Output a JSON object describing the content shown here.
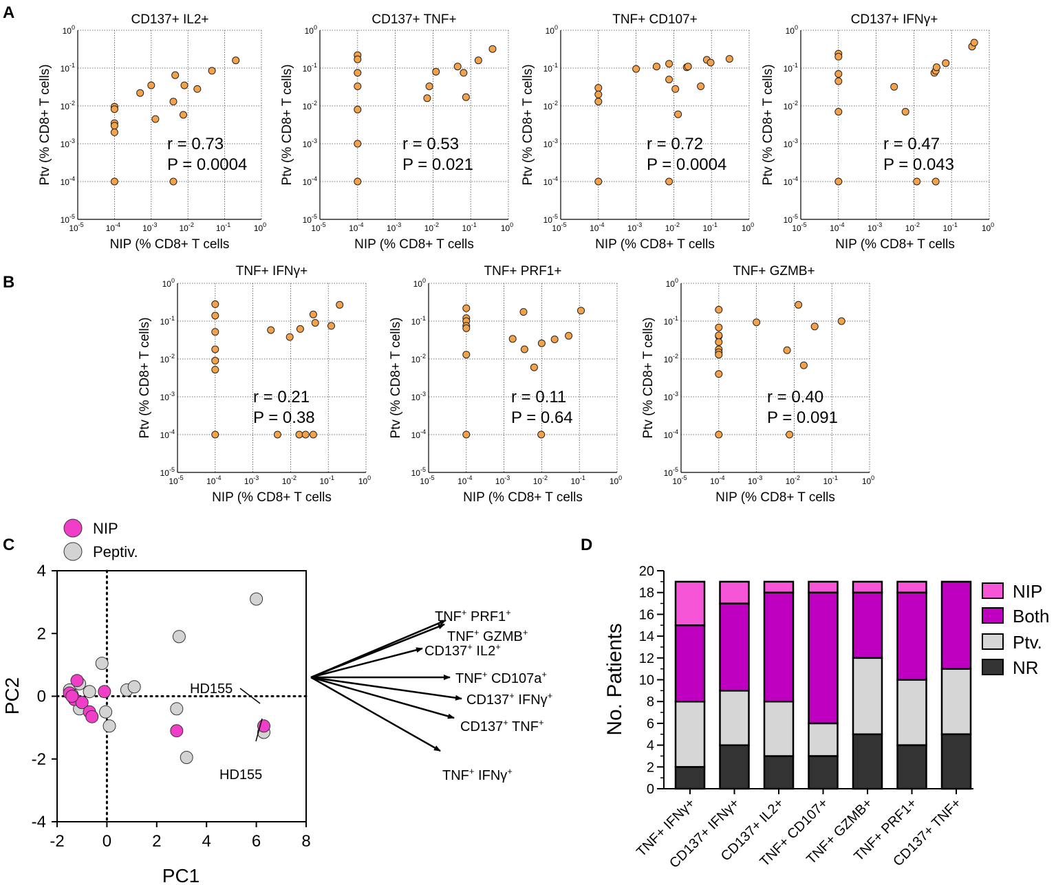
{
  "panels": {
    "A": "A",
    "B": "B",
    "C": "C",
    "D": "D"
  },
  "colors": {
    "orange_point": "#F4A24A",
    "nip_magenta": "#F03EC8",
    "peptiv_grey": "#D3D3D3",
    "both_purple": "#C000C0",
    "nip_pink": "#F555D6",
    "nr_dark": "#333333",
    "ptv_grey": "#D6D6D6"
  },
  "chart_data": [
    {
      "id": "A1",
      "type": "scatter",
      "title": "CD137+ IL2+",
      "xlabel": "NIP (% CD8+ T cells",
      "ylabel": "Ptv (% CD8+ T cells)",
      "xscale": "log",
      "yscale": "log",
      "xlim": [
        1e-05,
        1
      ],
      "ylim": [
        1e-05,
        1
      ],
      "r_text": "r = 0.73",
      "p_text": "P = 0.0004",
      "x": [
        0.0001,
        0.0001,
        0.0001,
        0.0001,
        0.0001,
        0.0001,
        0.0005,
        0.001,
        0.0013,
        0.004,
        0.0045,
        0.0075,
        0.008,
        0.018,
        0.045,
        0.2,
        0.004
      ],
      "y": [
        0.0095,
        0.0082,
        0.0035,
        0.003,
        0.002,
        0.0001,
        0.022,
        0.035,
        0.0045,
        0.013,
        0.065,
        0.0058,
        0.035,
        0.028,
        0.085,
        0.16,
        0.0001
      ]
    },
    {
      "id": "A2",
      "type": "scatter",
      "title": "CD137+ TNF+",
      "xlabel": "NIP (% CD8+ T cells",
      "ylabel": "Ptv (% CD8+ T cells)",
      "xscale": "log",
      "yscale": "log",
      "xlim": [
        1e-05,
        1
      ],
      "ylim": [
        1e-05,
        1
      ],
      "r_text": "r = 0.53",
      "p_text": "P = 0.021",
      "x": [
        0.0001,
        0.0001,
        0.0001,
        0.0001,
        0.0001,
        0.0001,
        0.0001,
        0.007,
        0.008,
        0.012,
        0.045,
        0.065,
        0.075,
        0.16,
        0.38
      ],
      "y": [
        0.22,
        0.17,
        0.075,
        0.033,
        0.008,
        0.001,
        0.0001,
        0.016,
        0.033,
        0.08,
        0.11,
        0.075,
        0.017,
        0.16,
        0.32
      ]
    },
    {
      "id": "A3",
      "type": "scatter",
      "title": "TNF+ CD107+",
      "xlabel": "NIP (% CD8+ T cells",
      "ylabel": "Ptv (% CD8+ T cells)",
      "xscale": "log",
      "yscale": "log",
      "xlim": [
        1e-05,
        1
      ],
      "ylim": [
        1e-05,
        1
      ],
      "r_text": "r = 0.72",
      "p_text": "P = 0.0004",
      "x": [
        0.0001,
        0.0001,
        0.0001,
        0.0001,
        0.001,
        0.0035,
        0.0075,
        0.0075,
        0.011,
        0.013,
        0.022,
        0.024,
        0.052,
        0.075,
        0.095,
        0.3,
        0.0075
      ],
      "y": [
        0.03,
        0.02,
        0.013,
        0.0001,
        0.095,
        0.11,
        0.13,
        0.05,
        0.028,
        0.006,
        0.105,
        0.11,
        0.033,
        0.165,
        0.14,
        0.175,
        0.0001
      ]
    },
    {
      "id": "A4",
      "type": "scatter",
      "title": "CD137+ IFNγ+",
      "xlabel": "NIP (% CD8+ T cells",
      "ylabel": "Ptv (% CD8+ T cells)",
      "xscale": "log",
      "yscale": "log",
      "xlim": [
        1e-05,
        1
      ],
      "ylim": [
        1e-05,
        1
      ],
      "r_text": "r = 0.47",
      "p_text": "P = 0.043",
      "x": [
        0.0001,
        0.0001,
        0.0001,
        0.0001,
        0.0001,
        0.0001,
        0.003,
        0.006,
        0.012,
        0.035,
        0.038,
        0.04,
        0.07,
        0.35,
        0.4,
        0.038
      ],
      "y": [
        0.24,
        0.2,
        0.07,
        0.045,
        0.007,
        0.0001,
        0.032,
        0.007,
        0.0001,
        0.075,
        0.085,
        0.105,
        0.135,
        0.37,
        0.47,
        0.0001
      ]
    },
    {
      "id": "B1",
      "type": "scatter",
      "title": "TNF+ IFNγ+",
      "xlabel": "NIP (% CD8+ T cells",
      "ylabel": "Ptv (% CD8+ T cells)",
      "xscale": "log",
      "yscale": "log",
      "xlim": [
        1e-05,
        1
      ],
      "ylim": [
        1e-05,
        1
      ],
      "r_text": "r = 0.21",
      "p_text": "P = 0.38",
      "x": [
        0.0001,
        0.0001,
        0.0001,
        0.0001,
        0.0001,
        0.0001,
        0.0001,
        0.003,
        0.0045,
        0.0095,
        0.017,
        0.018,
        0.025,
        0.04,
        0.045,
        0.04,
        0.12,
        0.2
      ],
      "y": [
        0.28,
        0.14,
        0.052,
        0.018,
        0.009,
        0.0052,
        0.0001,
        0.058,
        0.0001,
        0.038,
        0.0001,
        0.062,
        0.0001,
        0.0001,
        0.09,
        0.15,
        0.075,
        0.27
      ]
    },
    {
      "id": "B2",
      "type": "scatter",
      "title": "TNF+ PRF1+",
      "xlabel": "NIP (% CD8+ T cells",
      "ylabel": "Ptv (% CD8+ T cells)",
      "xscale": "log",
      "yscale": "log",
      "xlim": [
        1e-05,
        1
      ],
      "ylim": [
        1e-05,
        1
      ],
      "r_text": "r = 0.11",
      "p_text": "P = 0.64",
      "x": [
        0.0001,
        0.0001,
        0.0001,
        0.0001,
        0.0001,
        0.0001,
        0.0001,
        0.0017,
        0.0033,
        0.0035,
        0.0063,
        0.01,
        0.0097,
        0.022,
        0.052,
        0.11
      ],
      "y": [
        0.22,
        0.12,
        0.1,
        0.075,
        0.065,
        0.013,
        0.0001,
        0.034,
        0.175,
        0.018,
        0.006,
        0.026,
        0.0001,
        0.033,
        0.041,
        0.19
      ]
    },
    {
      "id": "B3",
      "type": "scatter",
      "title": "TNF+ GZMB+",
      "xlabel": "NIP (% CD8+ T cells",
      "ylabel": "Ptv (% CD8+ T cells)",
      "xscale": "log",
      "yscale": "log",
      "xlim": [
        1e-05,
        1
      ],
      "ylim": [
        1e-05,
        1
      ],
      "r_text": "r = 0.40",
      "p_text": "P = 0.091",
      "x": [
        0.0001,
        0.0001,
        0.0001,
        0.0001,
        0.0001,
        0.0001,
        0.0001,
        0.0001,
        0.0001,
        0.0001,
        0.001,
        0.0065,
        0.0075,
        0.013,
        0.018,
        0.035,
        0.18
      ],
      "y": [
        0.2,
        0.068,
        0.04,
        0.028,
        0.018,
        0.015,
        0.013,
        0.004,
        0.0001,
        0.042,
        0.093,
        0.017,
        0.0001,
        0.27,
        0.0068,
        0.072,
        0.1
      ]
    },
    {
      "id": "C",
      "type": "scatter",
      "subtype": "pca",
      "xlabel": "PC1",
      "ylabel": "PC2",
      "xlim": [
        -2,
        8
      ],
      "ylim": [
        -4,
        4
      ],
      "xticks": [
        "-2",
        "0",
        "2",
        "4",
        "6",
        "8"
      ],
      "yticks": [
        "-4",
        "-2",
        "0",
        "2",
        "4"
      ],
      "legend": [
        "NIP",
        "Peptiv."
      ],
      "annotations": [
        "HD155",
        "HD155"
      ],
      "series": [
        {
          "name": "NIP",
          "points": [
            [
              -1.2,
              0.5
            ],
            [
              -1.5,
              0.1
            ],
            [
              -1.3,
              -0.1
            ],
            [
              -1.0,
              -0.2
            ],
            [
              -0.7,
              -0.5
            ],
            [
              -0.6,
              -0.65
            ],
            [
              -0.1,
              0.15
            ],
            [
              2.8,
              -1.1
            ],
            [
              6.3,
              -0.95
            ],
            [
              -1.4,
              0.0
            ]
          ]
        },
        {
          "name": "Peptiv.",
          "points": [
            [
              -1.5,
              0.2
            ],
            [
              -1.1,
              0.4
            ],
            [
              -0.7,
              0.15
            ],
            [
              -1.4,
              0.05
            ],
            [
              -1.1,
              -0.4
            ],
            [
              -0.2,
              1.05
            ],
            [
              -0.05,
              -0.5
            ],
            [
              0.1,
              -0.95
            ],
            [
              0.8,
              0.2
            ],
            [
              1.1,
              0.3
            ],
            [
              2.9,
              1.9
            ],
            [
              6.0,
              3.1
            ],
            [
              2.8,
              -0.4
            ],
            [
              3.2,
              -1.95
            ],
            [
              6.3,
              -1.15
            ]
          ]
        }
      ],
      "loadings": [
        {
          "label": "TNF+ PRF1+",
          "main": "TNF",
          "sup1": "+",
          "rest": " PRF1",
          "sup2": "+"
        },
        {
          "label": "TNF+ GZMB+",
          "main": "TNF",
          "sup1": "+",
          "rest": " GZMB",
          "sup2": "+"
        },
        {
          "label": "CD137+ IL2+",
          "main": "CD137",
          "sup1": "+",
          "rest": " IL2",
          "sup2": "+"
        },
        {
          "label": "TNF+ CD107a+",
          "main": "TNF",
          "sup1": "+",
          "rest": " CD107a",
          "sup2": "+"
        },
        {
          "label": "CD137+ IFNγ+",
          "main": "CD137",
          "sup1": "+",
          "rest": " IFNγ",
          "sup2": "+"
        },
        {
          "label": "CD137+ TNF+",
          "main": "CD137",
          "sup1": "+",
          "rest": " TNF",
          "sup2": "+"
        },
        {
          "label": "TNF+ IFNγ+",
          "main": "TNF",
          "sup1": "+",
          "rest": " IFNγ",
          "sup2": "+"
        }
      ]
    },
    {
      "id": "D",
      "type": "bar",
      "stacked": true,
      "ylabel": "No. Patients",
      "ylim": [
        0,
        20
      ],
      "yticks": [
        "0",
        "2",
        "4",
        "6",
        "8",
        "10",
        "12",
        "14",
        "16",
        "18",
        "20"
      ],
      "categories": [
        "TNF+ IFNγ+",
        "CD137+ IFNγ+",
        "CD137+ IL2+",
        "TNF+ CD107+",
        "TNF+ GZMB+",
        "TNF+ PRF1+",
        "CD137+ TNF+"
      ],
      "series": [
        {
          "name": "NR",
          "values": [
            2,
            4,
            3,
            3,
            5,
            4,
            5
          ]
        },
        {
          "name": "Ptv.",
          "values": [
            6,
            5,
            5,
            3,
            7,
            6,
            6
          ]
        },
        {
          "name": "Both",
          "values": [
            7,
            8,
            10,
            12,
            6,
            8,
            8
          ]
        },
        {
          "name": "NIP",
          "values": [
            4,
            2,
            1,
            1,
            1,
            1,
            0
          ]
        }
      ],
      "legend": [
        "NIP",
        "Both",
        "Ptv.",
        "NR"
      ]
    }
  ]
}
